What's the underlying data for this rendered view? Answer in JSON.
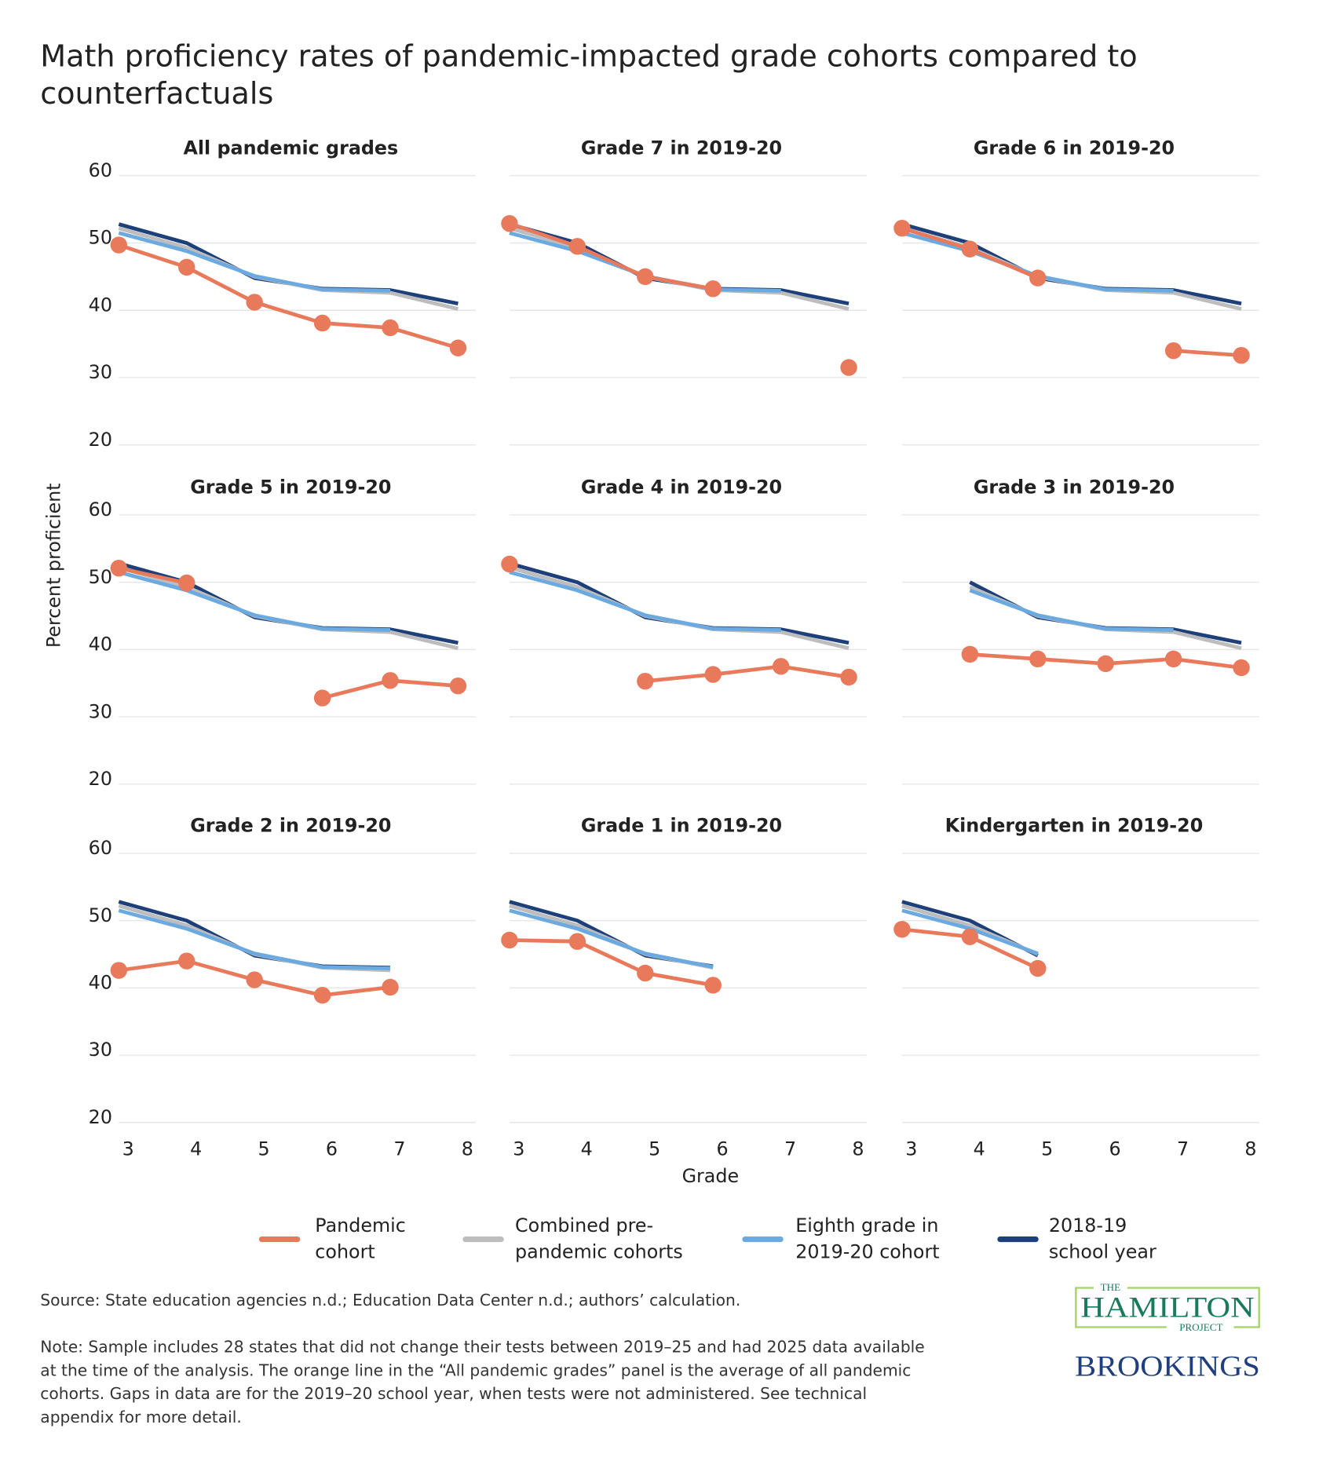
{
  "chart_data": {
    "type": "line",
    "title_lines": [
      "Math proficiency rates of pandemic-impacted grade cohorts compared to",
      "counterfactuals"
    ],
    "xlabel": "Grade",
    "ylabel": "Percent proficient",
    "x": [
      3,
      4,
      5,
      6,
      7,
      8
    ],
    "x_ticks": [
      "3",
      "4",
      "5",
      "6",
      "7",
      "8"
    ],
    "y_ticks": [
      "60",
      "50",
      "40",
      "30",
      "20"
    ],
    "ylim": [
      20,
      60
    ],
    "grid": "horizontal",
    "legend_position": "bottom",
    "colors": {
      "pandemic": "#E8795A",
      "combined": "#BDBDBD",
      "eighth": "#6AAAE0",
      "y1819": "#1D3F7A"
    },
    "legend": [
      {
        "key": "pandemic",
        "lines": [
          "Pandemic",
          "cohort"
        ]
      },
      {
        "key": "combined",
        "lines": [
          "Combined pre-",
          "pandemic cohorts"
        ]
      },
      {
        "key": "eighth",
        "lines": [
          "Eighth grade in",
          "2019-20 cohort"
        ]
      },
      {
        "key": "y1819",
        "lines": [
          "2018-19",
          "school year"
        ]
      }
    ],
    "counterfactual_series": {
      "y1819": [
        52.8,
        50.0,
        44.8,
        43.2,
        43.0,
        41.0
      ],
      "combined": [
        52.2,
        49.3,
        45.0,
        43.0,
        42.6,
        40.2
      ],
      "eighth": [
        51.5,
        48.8,
        45.1,
        43.1,
        42.9,
        null
      ]
    },
    "panels": [
      {
        "title": "All pandemic grades",
        "cf_grades": [
          3,
          8
        ],
        "pandemic": [
          49.7,
          46.4,
          41.2,
          38.1,
          37.4,
          34.4
        ]
      },
      {
        "title": "Grade 7 in 2019-20",
        "cf_grades": [
          3,
          8
        ],
        "pandemic": [
          52.9,
          49.5,
          45.0,
          43.2,
          null,
          31.5
        ]
      },
      {
        "title": "Grade 6 in 2019-20",
        "cf_grades": [
          3,
          8
        ],
        "pandemic": [
          52.2,
          49.1,
          44.8,
          null,
          34.0,
          33.3
        ]
      },
      {
        "title": "Grade 5 in 2019-20",
        "cf_grades": [
          3,
          8
        ],
        "pandemic": [
          52.1,
          49.9,
          null,
          32.8,
          35.4,
          34.6
        ]
      },
      {
        "title": "Grade 4 in 2019-20",
        "cf_grades": [
          3,
          8
        ],
        "pandemic": [
          52.7,
          null,
          35.3,
          36.3,
          37.5,
          35.9
        ]
      },
      {
        "title": "Grade 3 in 2019-20",
        "cf_grades": [
          4,
          8
        ],
        "pandemic": [
          null,
          39.3,
          38.6,
          37.9,
          38.6,
          37.3
        ]
      },
      {
        "title": "Grade 2 in 2019-20",
        "cf_grades": [
          3,
          7
        ],
        "pandemic": [
          42.6,
          44.0,
          41.2,
          38.9,
          40.1,
          null
        ]
      },
      {
        "title": "Grade 1 in 2019-20",
        "cf_grades": [
          3,
          6
        ],
        "pandemic": [
          47.1,
          46.9,
          42.2,
          40.4,
          null,
          null
        ]
      },
      {
        "title": "Kindergarten in 2019-20",
        "cf_grades": [
          3,
          5
        ],
        "pandemic": [
          48.7,
          47.6,
          42.9,
          null,
          null,
          null
        ]
      }
    ]
  },
  "footer": {
    "source": "Source: State education agencies n.d.; Education Data Center n.d.; authors’ calculation.",
    "note_lines": [
      "Note: Sample includes 28 states that did not change their tests between 2019–25 and had 2025 data available",
      "at the time of the analysis. The orange line in the “All pandemic grades” panel is the average of all pandemic",
      "cohorts. Gaps in data are for the 2019–20 school year, when tests were not administered. See technical",
      "appendix for more detail."
    ]
  },
  "logos": {
    "hamilton_top": "THE",
    "hamilton_main": "HAMILTON",
    "hamilton_bottom": "PROJECT",
    "brookings": "BROOKINGS"
  }
}
